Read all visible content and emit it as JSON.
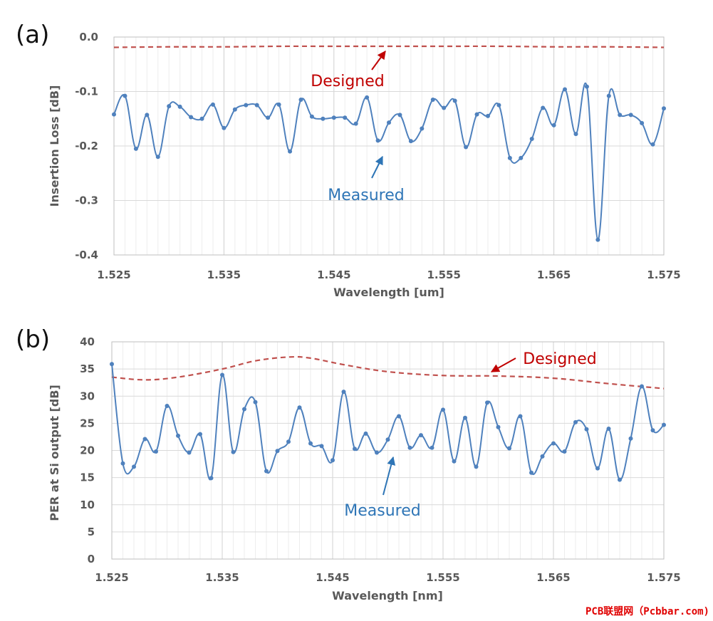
{
  "colors": {
    "designed": "#c0504d",
    "measured": "#4f81bd",
    "designed_text": "#c00000",
    "measured_text": "#2e75b6",
    "grid": "#d9d9d9"
  },
  "chart_data": [
    {
      "type": "line",
      "panel_label": "(a)",
      "xlabel": "Wavelength [um]",
      "ylabel": "Insertion Loss [dB]",
      "xlim": [
        1.525,
        1.575
      ],
      "ylim": [
        -0.4,
        0.0
      ],
      "x_ticks": [
        1.525,
        1.535,
        1.545,
        1.555,
        1.565,
        1.575
      ],
      "x_tick_labels": [
        "1.525",
        "1.535",
        "1.545",
        "1.555",
        "1.565",
        "1.575"
      ],
      "y_ticks": [
        0.0,
        -0.1,
        -0.2,
        -0.3,
        -0.4
      ],
      "y_tick_labels": [
        "0.0",
        "-0.1",
        "-0.2",
        "-0.3",
        "-0.4"
      ],
      "grid": true,
      "annotations": [
        {
          "text": "Designed",
          "color": "designed_text"
        },
        {
          "text": "Measured",
          "color": "measured_text"
        }
      ],
      "series": [
        {
          "name": "Designed",
          "style": "dashed",
          "color": "designed",
          "x": [
            1.525,
            1.53,
            1.535,
            1.54,
            1.545,
            1.55,
            1.555,
            1.56,
            1.565,
            1.57,
            1.575
          ],
          "y": [
            -0.019,
            -0.018,
            -0.018,
            -0.017,
            -0.017,
            -0.017,
            -0.017,
            -0.017,
            -0.018,
            -0.018,
            -0.019
          ]
        },
        {
          "name": "Measured",
          "style": "solid-markers",
          "color": "measured",
          "x": [
            1.525,
            1.526,
            1.527,
            1.528,
            1.529,
            1.53,
            1.531,
            1.532,
            1.533,
            1.534,
            1.535,
            1.536,
            1.537,
            1.538,
            1.539,
            1.54,
            1.541,
            1.542,
            1.543,
            1.544,
            1.545,
            1.546,
            1.547,
            1.548,
            1.549,
            1.55,
            1.551,
            1.552,
            1.553,
            1.554,
            1.555,
            1.556,
            1.557,
            1.558,
            1.559,
            1.56,
            1.561,
            1.562,
            1.563,
            1.564,
            1.565,
            1.566,
            1.567,
            1.568,
            1.569,
            1.57,
            1.571,
            1.572,
            1.573,
            1.574,
            1.575
          ],
          "y": [
            -0.142,
            -0.108,
            -0.205,
            -0.143,
            -0.22,
            -0.127,
            -0.128,
            -0.147,
            -0.15,
            -0.124,
            -0.167,
            -0.133,
            -0.125,
            -0.125,
            -0.148,
            -0.124,
            -0.21,
            -0.115,
            -0.146,
            -0.15,
            -0.148,
            -0.148,
            -0.159,
            -0.111,
            -0.19,
            -0.157,
            -0.143,
            -0.191,
            -0.168,
            -0.115,
            -0.13,
            -0.117,
            -0.202,
            -0.142,
            -0.145,
            -0.125,
            -0.222,
            -0.222,
            -0.187,
            -0.13,
            -0.162,
            -0.096,
            -0.178,
            -0.091,
            -0.372,
            -0.108,
            -0.143,
            -0.143,
            -0.158,
            -0.197,
            -0.131
          ]
        }
      ]
    },
    {
      "type": "line",
      "panel_label": "(b)",
      "xlabel": "Wavelength [nm]",
      "ylabel": "PER at Si output [dB]",
      "xlim": [
        1.525,
        1.575
      ],
      "ylim": [
        0,
        40
      ],
      "x_ticks": [
        1.525,
        1.535,
        1.545,
        1.555,
        1.565,
        1.575
      ],
      "x_tick_labels": [
        "1.525",
        "1.535",
        "1.545",
        "1.555",
        "1.565",
        "1.575"
      ],
      "y_ticks": [
        0,
        5,
        10,
        15,
        20,
        25,
        30,
        35,
        40
      ],
      "y_tick_labels": [
        "0",
        "5",
        "10",
        "15",
        "20",
        "25",
        "30",
        "35",
        "40"
      ],
      "grid": true,
      "annotations": [
        {
          "text": "Designed",
          "color": "designed_text"
        },
        {
          "text": "Measured",
          "color": "measured_text"
        }
      ],
      "series": [
        {
          "name": "Designed",
          "style": "dashed",
          "color": "designed",
          "x": [
            1.525,
            1.528,
            1.531,
            1.535,
            1.538,
            1.541,
            1.543,
            1.546,
            1.55,
            1.555,
            1.56,
            1.565,
            1.57,
            1.575
          ],
          "y": [
            33.5,
            33.0,
            33.5,
            35.0,
            36.5,
            37.2,
            37.0,
            35.8,
            34.5,
            33.8,
            33.7,
            33.3,
            32.3,
            31.4
          ]
        },
        {
          "name": "Measured",
          "style": "solid-markers",
          "color": "measured",
          "x": [
            1.525,
            1.526,
            1.527,
            1.528,
            1.529,
            1.53,
            1.531,
            1.532,
            1.533,
            1.534,
            1.535,
            1.536,
            1.537,
            1.538,
            1.539,
            1.54,
            1.541,
            1.542,
            1.543,
            1.544,
            1.545,
            1.546,
            1.547,
            1.548,
            1.549,
            1.55,
            1.551,
            1.552,
            1.553,
            1.554,
            1.555,
            1.556,
            1.557,
            1.558,
            1.559,
            1.56,
            1.561,
            1.562,
            1.563,
            1.564,
            1.565,
            1.566,
            1.567,
            1.568,
            1.569,
            1.57,
            1.571,
            1.572,
            1.573,
            1.574,
            1.575
          ],
          "y": [
            35.9,
            17.6,
            17.0,
            22.1,
            19.8,
            28.2,
            22.7,
            19.6,
            23.0,
            14.9,
            33.9,
            19.7,
            27.6,
            28.9,
            16.2,
            19.9,
            21.6,
            27.9,
            21.3,
            20.8,
            18.2,
            30.8,
            20.3,
            23.1,
            19.6,
            22.0,
            26.3,
            20.5,
            22.8,
            20.5,
            27.5,
            18.0,
            26.0,
            17.0,
            28.8,
            24.3,
            20.4,
            26.3,
            15.9,
            18.9,
            21.3,
            19.8,
            25.2,
            23.9,
            16.7,
            24.0,
            14.6,
            22.2,
            31.8,
            23.7,
            24.7
          ]
        }
      ]
    }
  ],
  "watermark": "PCB联盟网（Pcbbar.com)"
}
